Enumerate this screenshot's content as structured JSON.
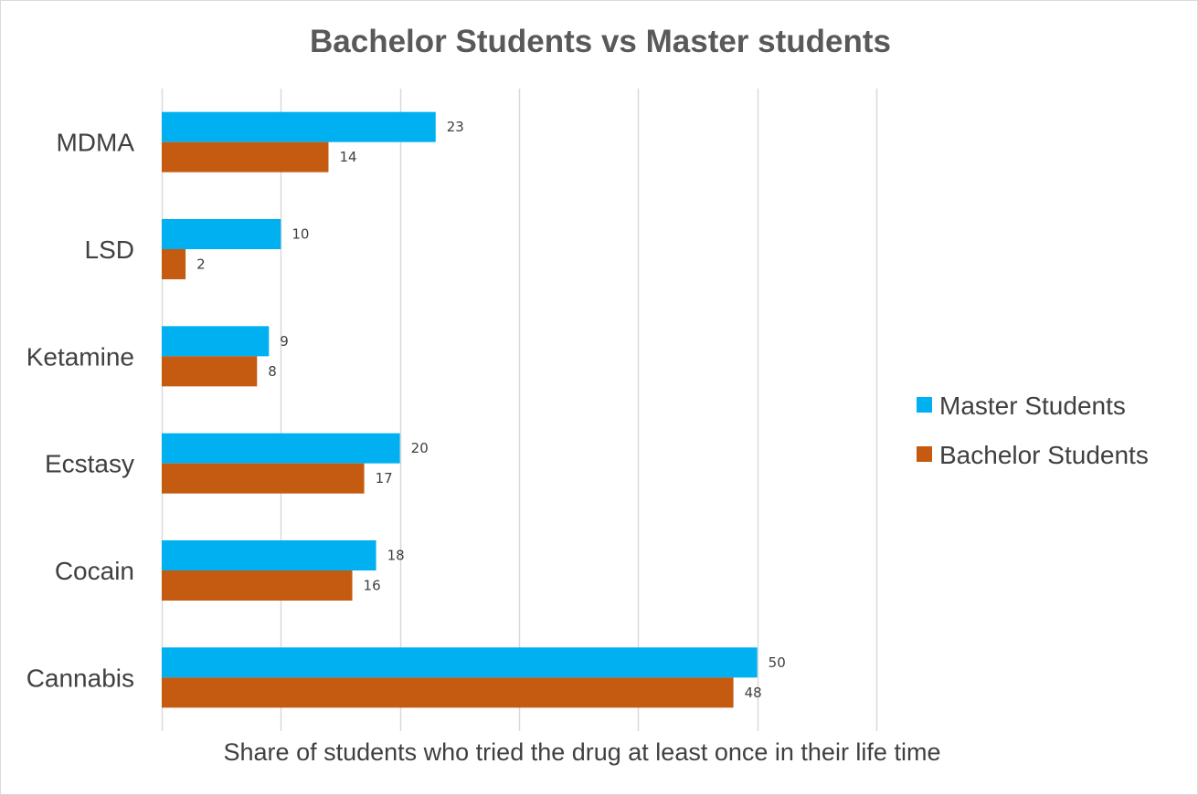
{
  "chart_data": {
    "type": "bar",
    "orientation": "horizontal",
    "title": "Bachelor Students vs Master students",
    "xlabel": "Share of students who tried the drug at least once in their life time",
    "ylabel": "",
    "categories": [
      "MDMA",
      "LSD",
      "Ketamine",
      "Ecstasy",
      "Cocain",
      "Cannabis"
    ],
    "series": [
      {
        "name": "Master Students",
        "values": [
          23,
          10,
          9,
          20,
          18,
          50
        ],
        "color": "#00b0f0"
      },
      {
        "name": "Bachelor Students",
        "values": [
          14,
          2,
          8,
          17,
          16,
          48
        ],
        "color": "#c55a11"
      }
    ],
    "xlim": [
      0,
      60
    ],
    "grid": true,
    "legend_position": "right",
    "data_labels": true
  }
}
